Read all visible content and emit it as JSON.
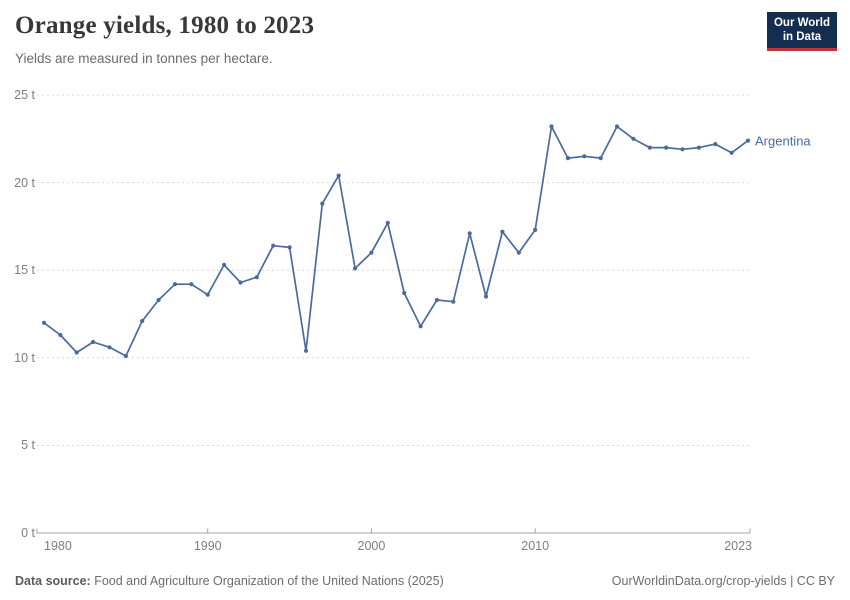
{
  "header": {
    "title": "Orange yields, 1980 to 2023",
    "subtitle": "Yields are measured in tonnes per hectare."
  },
  "logo": {
    "line1": "Our World",
    "line2": "in Data"
  },
  "chart_data": {
    "type": "line",
    "title": "Orange yields, 1980 to 2023",
    "subtitle": "Yields are measured in tonnes per hectare.",
    "unit": "tonnes per hectare",
    "ylim": [
      0,
      25
    ],
    "grid": "horizontal-dashed",
    "legend_position": "end-of-line-label",
    "series": [
      {
        "name": "Argentina",
        "color": "#4C6A9C",
        "x": [
          1980,
          1981,
          1982,
          1983,
          1984,
          1985,
          1986,
          1987,
          1988,
          1989,
          1990,
          1991,
          1992,
          1993,
          1994,
          1995,
          1996,
          1997,
          1998,
          1999,
          2000,
          2001,
          2002,
          2003,
          2004,
          2005,
          2006,
          2007,
          2008,
          2009,
          2010,
          2011,
          2012,
          2013,
          2014,
          2015,
          2016,
          2017,
          2018,
          2019,
          2020,
          2021,
          2022,
          2023
        ],
        "values": [
          12.0,
          11.3,
          10.3,
          10.9,
          10.6,
          10.1,
          12.1,
          13.3,
          14.2,
          14.2,
          13.6,
          15.3,
          14.3,
          14.6,
          16.4,
          16.3,
          10.4,
          18.8,
          20.4,
          15.1,
          16.0,
          17.7,
          13.7,
          11.8,
          13.3,
          13.2,
          17.1,
          13.5,
          17.2,
          16.0,
          17.3,
          23.2,
          21.4,
          21.5,
          21.4,
          23.2,
          22.5,
          22.0,
          22.0,
          21.9,
          22.0,
          22.2,
          21.7,
          22.4
        ]
      }
    ],
    "y_ticks": [
      {
        "value": 0,
        "label": "0 t"
      },
      {
        "value": 5,
        "label": "5 t"
      },
      {
        "value": 10,
        "label": "10 t"
      },
      {
        "value": 15,
        "label": "15 t"
      },
      {
        "value": 20,
        "label": "20 t"
      },
      {
        "value": 25,
        "label": "25 t"
      }
    ],
    "x_ticks": [
      {
        "value": 1980,
        "label": "1980"
      },
      {
        "value": 1990,
        "label": "1990"
      },
      {
        "value": 2000,
        "label": "2000"
      },
      {
        "value": 2010,
        "label": "2010"
      },
      {
        "value": 2023,
        "label": "2023"
      }
    ]
  },
  "footer": {
    "source_label": "Data source:",
    "source_text": "Food and Agriculture Organization of the United Nations (2025)",
    "credit": "OurWorldinData.org/crop-yields | CC BY"
  },
  "colors": {
    "line": "#4C6A9C",
    "grid": "#d9d9d9",
    "axis": "#a3a3a3",
    "logo_navy": "#152e4f",
    "logo_red": "#c23335",
    "title_text": "#383838",
    "muted_text": "#7e7e7e"
  }
}
